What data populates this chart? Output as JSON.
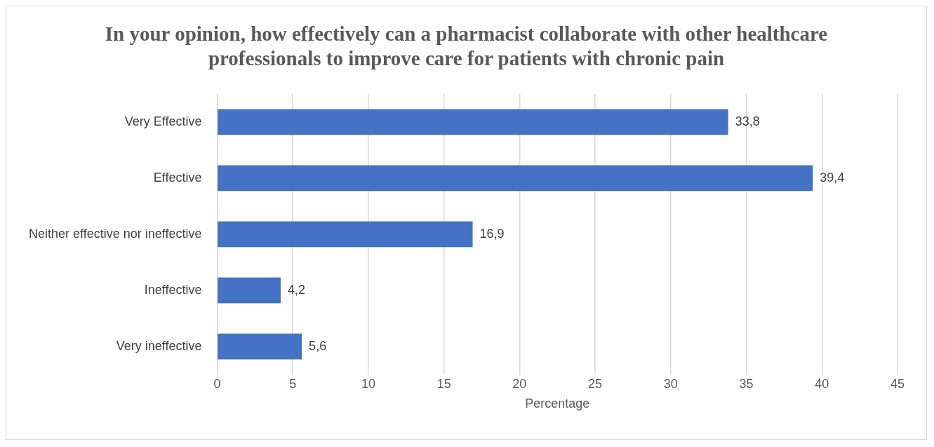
{
  "chart_data": {
    "type": "bar",
    "orientation": "horizontal",
    "title": "In your opinion, how effectively can a pharmacist collaborate with other healthcare professionals to improve care for patients with chronic pain",
    "xlabel": "Percentage",
    "categories": [
      "Very Effective",
      "Effective",
      "Neither effective nor ineffective",
      "Ineffective",
      "Very ineffective"
    ],
    "values": [
      33.8,
      39.4,
      16.9,
      4.2,
      5.6
    ],
    "value_labels": [
      "33,8",
      "39,4",
      "16,9",
      "4,2",
      "5,6"
    ],
    "color": "#4472c4",
    "xlim": [
      0,
      45
    ],
    "xticks": [
      0,
      5,
      10,
      15,
      20,
      25,
      30,
      35,
      40,
      45
    ],
    "grid": "x",
    "legend": false
  }
}
